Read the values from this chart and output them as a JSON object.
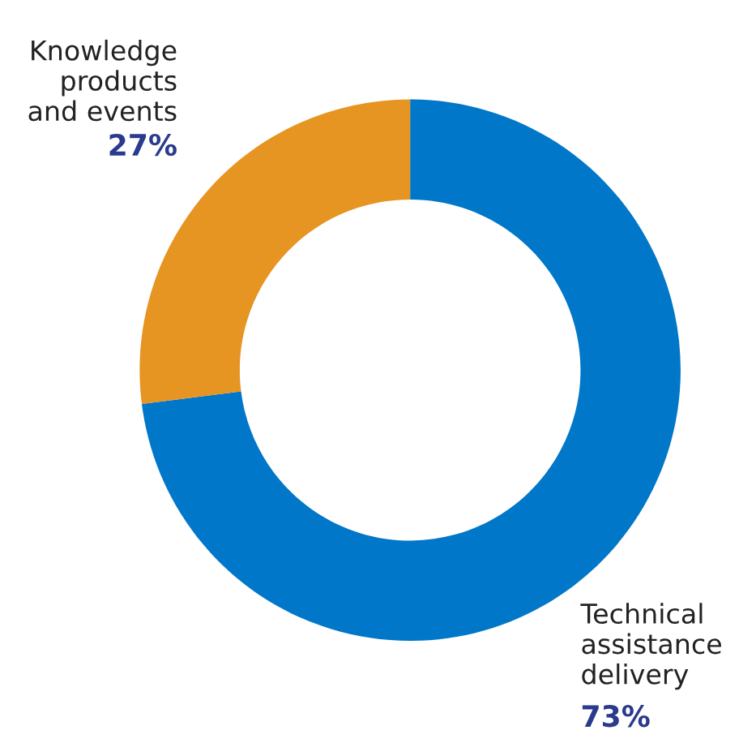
{
  "chart_data": {
    "type": "donut",
    "categories": [
      "Technical\nassistance\ndelivery",
      "Knowledge\nproducts\nand events"
    ],
    "values": [
      73,
      27
    ],
    "colors": [
      "#0077c8",
      "#e69422"
    ],
    "value_labels": [
      "73%",
      "27%"
    ],
    "legend": false
  }
}
